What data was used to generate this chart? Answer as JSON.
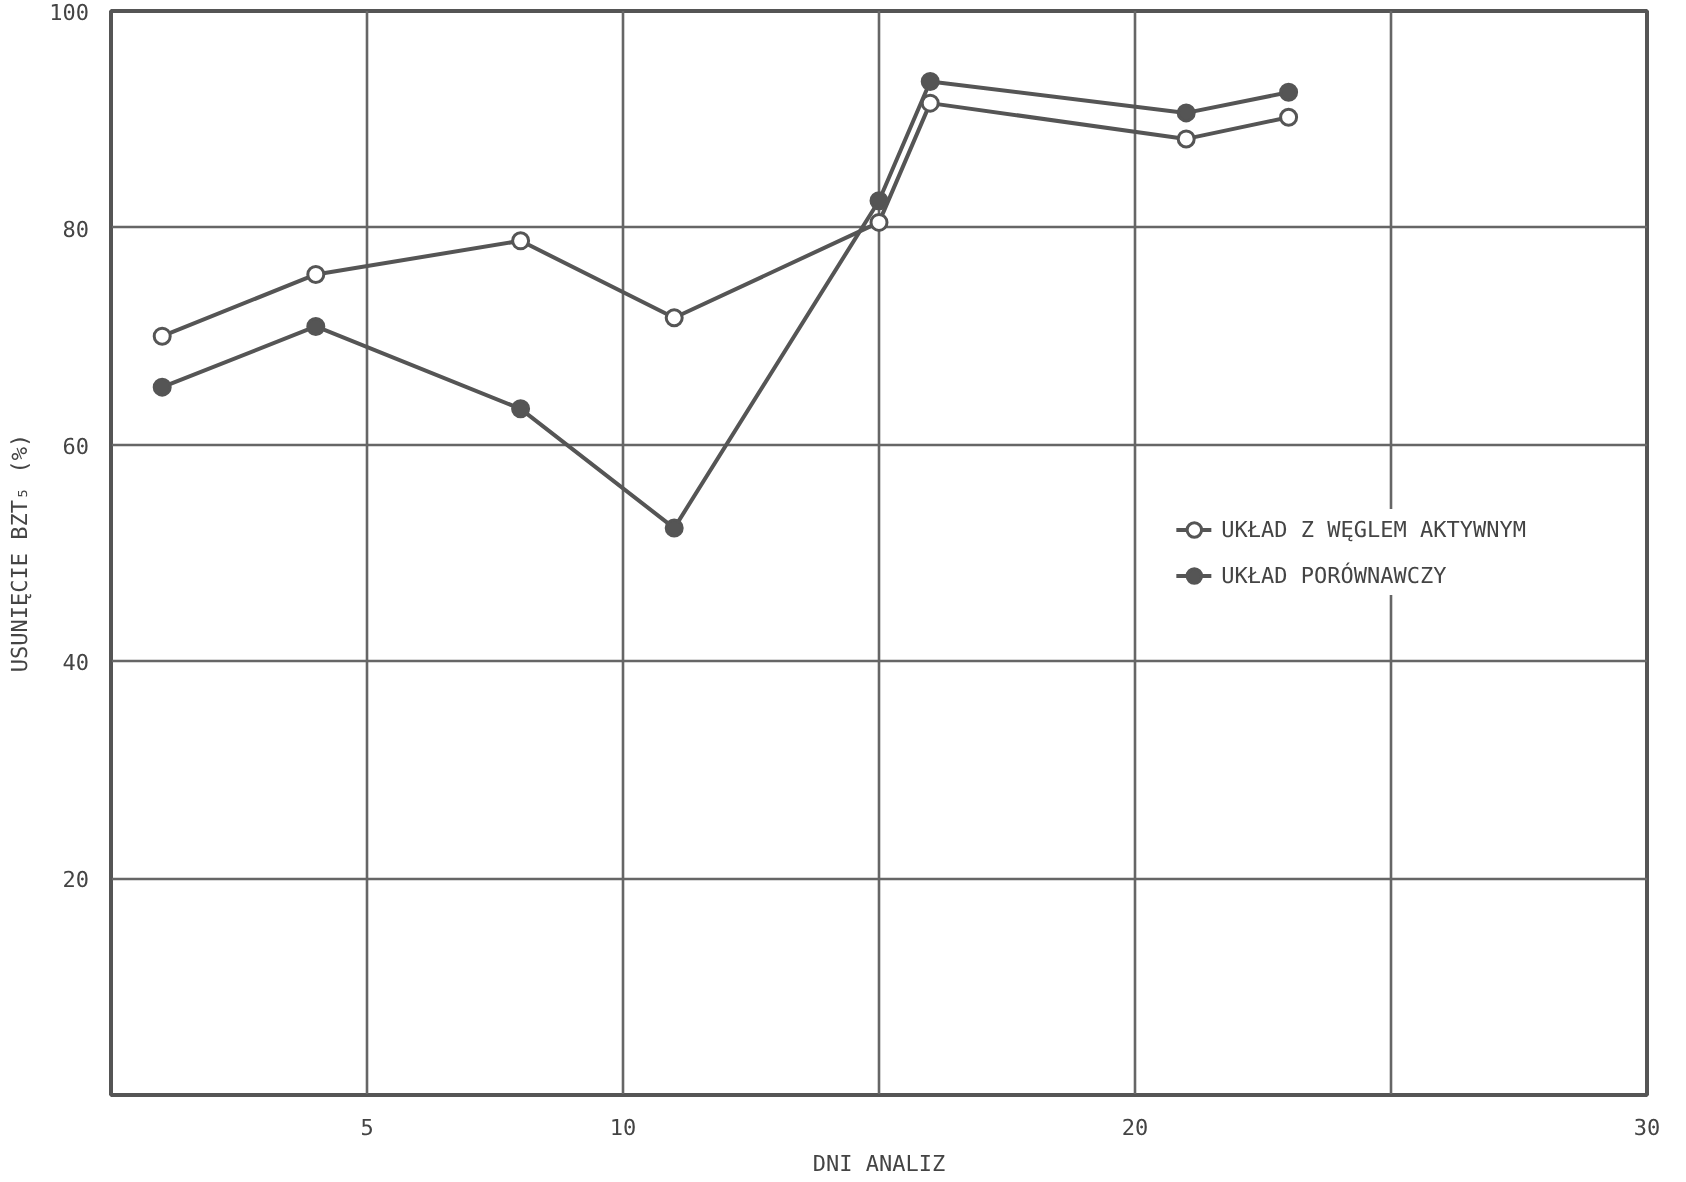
{
  "chart_data": {
    "type": "line",
    "xlabel": "DNI ANALIZ",
    "ylabel": "USUNIĘCIE BZT₅ (%)",
    "x": [
      1,
      4,
      8,
      11,
      15,
      16,
      21,
      23
    ],
    "series": [
      {
        "name": "UKŁAD Z WĘGLEM AKTYWNYM",
        "color": "#555555",
        "values": [
          70,
          75.7,
          78.8,
          71.7,
          80.5,
          91.5,
          88.2,
          90.2
        ]
      },
      {
        "name": "UKŁAD PORÓWNAWCZY",
        "color": "#555555",
        "values": [
          65.3,
          70.9,
          63.3,
          52.3,
          82.5,
          93.5,
          90.6,
          92.5
        ]
      }
    ],
    "xlim": [
      0,
      30
    ],
    "xticks": [
      {
        "value": 0,
        "label": null
      },
      5,
      10,
      {
        "value": 15,
        "label": null
      },
      20,
      {
        "value": 25,
        "label": null
      },
      30
    ],
    "ylim": [
      0,
      100
    ],
    "yticks": [
      {
        "value": 0,
        "label": null
      },
      20,
      40,
      60,
      80,
      100
    ],
    "grid": true,
    "legend": "right",
    "marker": "circle",
    "line_style": "solid"
  }
}
